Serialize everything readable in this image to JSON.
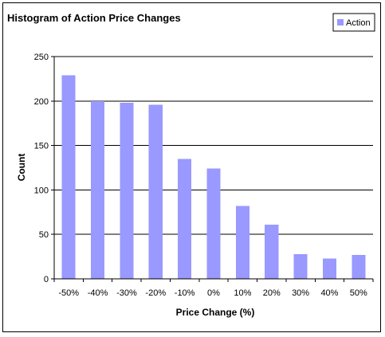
{
  "chart_data": {
    "type": "bar",
    "title": "Histogram of Action Price Changes",
    "xlabel": "Price Change (%)",
    "ylabel": "Count",
    "categories": [
      "-50%",
      "-40%",
      "-30%",
      "-20%",
      "-10%",
      "0%",
      "10%",
      "20%",
      "30%",
      "40%",
      "50%"
    ],
    "series": [
      {
        "name": "Action",
        "values": [
          229,
          200,
          198,
          196,
          135,
          124,
          82,
          61,
          28,
          23,
          27
        ]
      }
    ],
    "ylim": [
      0,
      250
    ],
    "yticks": [
      0,
      50,
      100,
      150,
      200,
      250
    ],
    "grid": true,
    "legend_position": "top-right",
    "colors": {
      "bar": "#9999FF",
      "grid": "#000000",
      "axis": "#000000"
    }
  }
}
